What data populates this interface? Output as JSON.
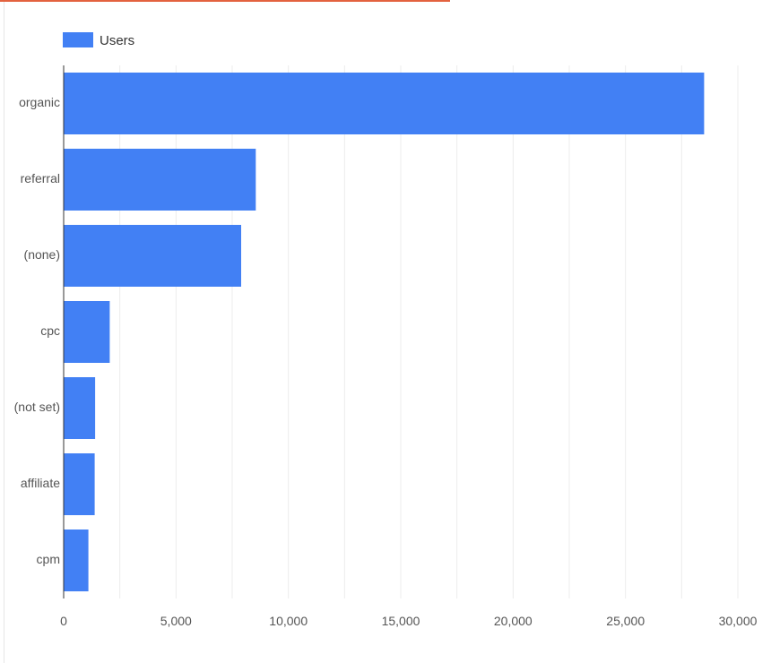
{
  "colors": {
    "bar": "#4280f4",
    "grid": "#ececec",
    "axis": "#333333",
    "tick_text": "#555555",
    "top_accent": "#e3623f"
  },
  "chart_data": {
    "type": "bar",
    "orientation": "horizontal",
    "categories": [
      "organic",
      "referral",
      "(none)",
      "cpc",
      "(not set)",
      "affiliate",
      "cpm"
    ],
    "series": [
      {
        "name": "Users",
        "values": [
          28500,
          8550,
          7900,
          2050,
          1400,
          1380,
          1100
        ]
      }
    ],
    "xlim": [
      0,
      30000
    ],
    "xticks": [
      0,
      5000,
      10000,
      15000,
      20000,
      25000,
      30000
    ],
    "xtick_labels": [
      "0",
      "5,000",
      "10,000",
      "15,000",
      "20,000",
      "25,000",
      "30,000"
    ],
    "grid": true,
    "legend": "top-left"
  }
}
